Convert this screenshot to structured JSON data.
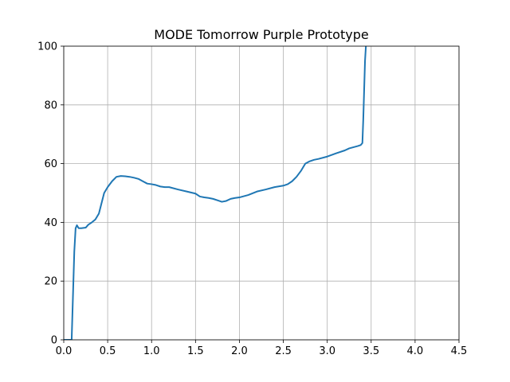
{
  "chart_data": {
    "type": "line",
    "title": "MODE Tomorrow Purple Prototype",
    "xlabel": "",
    "ylabel": "",
    "xlim": [
      0,
      4.5
    ],
    "ylim": [
      0,
      100
    ],
    "xticks": [
      0.0,
      0.5,
      1.0,
      1.5,
      2.0,
      2.5,
      3.0,
      3.5,
      4.0,
      4.5
    ],
    "xtick_labels": [
      "0.0",
      "0.5",
      "1.0",
      "1.5",
      "2.0",
      "2.5",
      "3.0",
      "3.5",
      "4.0",
      "4.5"
    ],
    "yticks": [
      0,
      20,
      40,
      60,
      80,
      100
    ],
    "ytick_labels": [
      "0",
      "20",
      "40",
      "60",
      "80",
      "100"
    ],
    "grid": true,
    "series": [
      {
        "color": "#1f77b4",
        "x": [
          0.0,
          0.09,
          0.1,
          0.12,
          0.135,
          0.15,
          0.17,
          0.2,
          0.25,
          0.28,
          0.32,
          0.36,
          0.4,
          0.43,
          0.46,
          0.5,
          0.55,
          0.6,
          0.65,
          0.7,
          0.75,
          0.8,
          0.85,
          0.9,
          0.95,
          1.0,
          1.05,
          1.1,
          1.15,
          1.2,
          1.3,
          1.4,
          1.5,
          1.55,
          1.6,
          1.65,
          1.7,
          1.75,
          1.8,
          1.85,
          1.9,
          1.95,
          2.0,
          2.1,
          2.2,
          2.3,
          2.4,
          2.5,
          2.55,
          2.6,
          2.65,
          2.7,
          2.75,
          2.8,
          2.85,
          2.9,
          3.0,
          3.1,
          3.2,
          3.25,
          3.3,
          3.35,
          3.38,
          3.4,
          3.41,
          3.42,
          3.43,
          3.44,
          3.45
        ],
        "y": [
          0.0,
          0.0,
          10.0,
          30.0,
          38.0,
          39.0,
          38.0,
          38.0,
          38.2,
          39.2,
          40.0,
          41.0,
          43.0,
          46.5,
          50.0,
          52.0,
          54.0,
          55.5,
          55.8,
          55.7,
          55.5,
          55.2,
          54.8,
          54.0,
          53.2,
          53.0,
          52.7,
          52.2,
          52.0,
          52.0,
          51.2,
          50.5,
          49.8,
          48.8,
          48.5,
          48.3,
          48.0,
          47.5,
          47.0,
          47.3,
          48.0,
          48.3,
          48.5,
          49.3,
          50.5,
          51.2,
          52.0,
          52.5,
          53.0,
          54.0,
          55.5,
          57.5,
          60.0,
          60.8,
          61.3,
          61.6,
          62.4,
          63.5,
          64.5,
          65.2,
          65.6,
          66.0,
          66.3,
          67.0,
          75.0,
          85.0,
          95.0,
          100.0,
          102.0
        ]
      }
    ]
  }
}
